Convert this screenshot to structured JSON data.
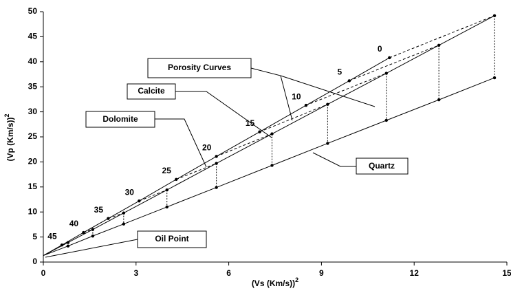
{
  "chart_data": {
    "type": "line",
    "xlabel": {
      "text": "(Vs (Km/s))",
      "superscript": "2"
    },
    "ylabel": {
      "text": "(Vp (Km/s))",
      "superscript": "2"
    },
    "xlim": [
      0,
      15
    ],
    "xticks": [
      0,
      3,
      6,
      9,
      12,
      15
    ],
    "ylim": [
      0,
      50
    ],
    "yticks": [
      0,
      5,
      10,
      15,
      20,
      25,
      30,
      35,
      40,
      45,
      50
    ],
    "porosity": [
      0,
      5,
      10,
      15,
      20,
      25,
      30,
      35,
      40,
      45
    ],
    "oil_point": {
      "label": "Oil Point",
      "x": 0,
      "y": 1.3
    },
    "porosity_curves_label": "Porosity Curves",
    "series": [
      {
        "name": "Calcite",
        "color": "#000000",
        "x": [
          11.2,
          9.9,
          8.5,
          7.0,
          5.6,
          4.3,
          3.1,
          2.1,
          1.3,
          0.6
        ],
        "values": [
          40.8,
          36.2,
          31.3,
          26.0,
          21.1,
          16.5,
          12.2,
          8.7,
          5.9,
          3.4
        ]
      },
      {
        "name": "Dolomite",
        "color": "#000000",
        "x": [
          14.6,
          12.8,
          11.1,
          9.2,
          7.4,
          5.6,
          4.0,
          2.6,
          1.6,
          0.8
        ],
        "values": [
          49.2,
          43.3,
          37.7,
          31.5,
          25.6,
          19.7,
          14.4,
          9.8,
          6.5,
          3.9
        ]
      },
      {
        "name": "Quartz",
        "color": "#000000",
        "x": [
          14.6,
          12.8,
          11.1,
          9.2,
          7.4,
          5.6,
          4.0,
          2.6,
          1.6,
          0.8
        ],
        "values": [
          36.8,
          32.4,
          28.3,
          23.7,
          19.3,
          14.9,
          11.0,
          7.6,
          5.2,
          3.2
        ]
      }
    ]
  }
}
